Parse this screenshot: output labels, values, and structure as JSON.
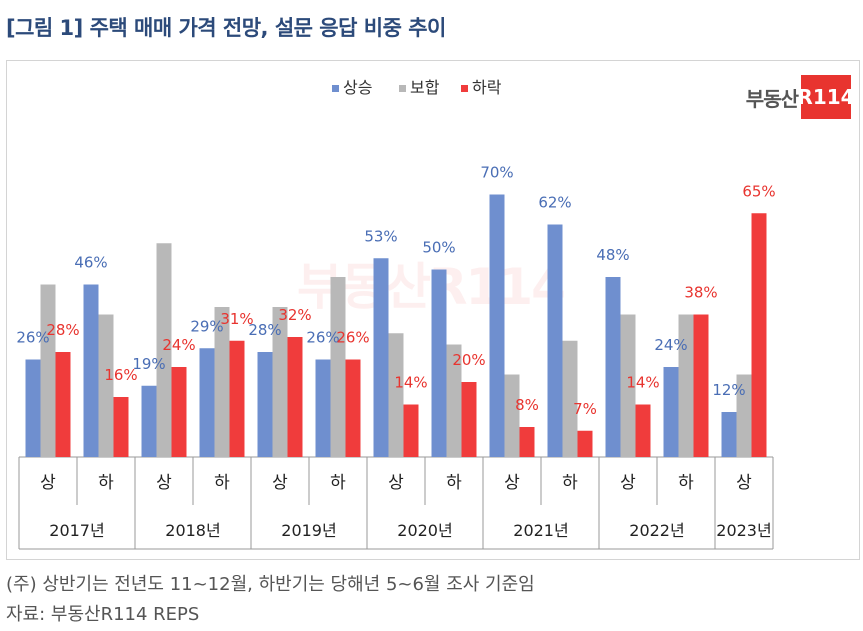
{
  "title": "[그림 1] 주택 매매 가격 전망, 설문 응답 비중 추이",
  "brand": {
    "text": "부동산",
    "box": "R114"
  },
  "watermark": "부동산R114",
  "footnote": "(주) 상반기는 전년도 11~12월, 하반기는 당해년 5~6월 조사 기준임",
  "source": "자료: 부동산R114 REPS",
  "colors": {
    "상승": "#6f8fcf",
    "보합": "#b8b8b8",
    "하락": "#f03c3c"
  },
  "chart_data": {
    "type": "bar",
    "title": "",
    "xlabel": "",
    "ylabel": "",
    "ylim": [
      0,
      80
    ],
    "legend_position": "top-center",
    "grid": false,
    "categories": [
      "상",
      "하",
      "상",
      "하",
      "상",
      "하",
      "상",
      "하",
      "상",
      "하",
      "상",
      "하",
      "상"
    ],
    "years": [
      "2017년",
      "2018년",
      "2019년",
      "2020년",
      "2021년",
      "2022년",
      "2023년"
    ],
    "year_span": [
      2,
      2,
      2,
      2,
      2,
      2,
      1
    ],
    "series": [
      {
        "name": "상승",
        "values": [
          26,
          46,
          19,
          29,
          28,
          26,
          53,
          50,
          70,
          62,
          48,
          24,
          12
        ]
      },
      {
        "name": "보합",
        "values": [
          46,
          38,
          57,
          40,
          40,
          48,
          33,
          30,
          22,
          31,
          38,
          38,
          22
        ]
      },
      {
        "name": "하락",
        "values": [
          28,
          16,
          24,
          31,
          32,
          26,
          14,
          20,
          8,
          7,
          14,
          38,
          65
        ]
      }
    ],
    "data_labels": {
      "상승": [
        "26%",
        "46%",
        "19%",
        "29%",
        "28%",
        "26%",
        "53%",
        "50%",
        "70%",
        "62%",
        "48%",
        "24%",
        "12%"
      ],
      "하락": [
        "28%",
        "16%",
        "24%",
        "31%",
        "32%",
        "26%",
        "14%",
        "20%",
        "8%",
        "7%",
        "14%",
        "38%",
        "65%"
      ]
    }
  }
}
